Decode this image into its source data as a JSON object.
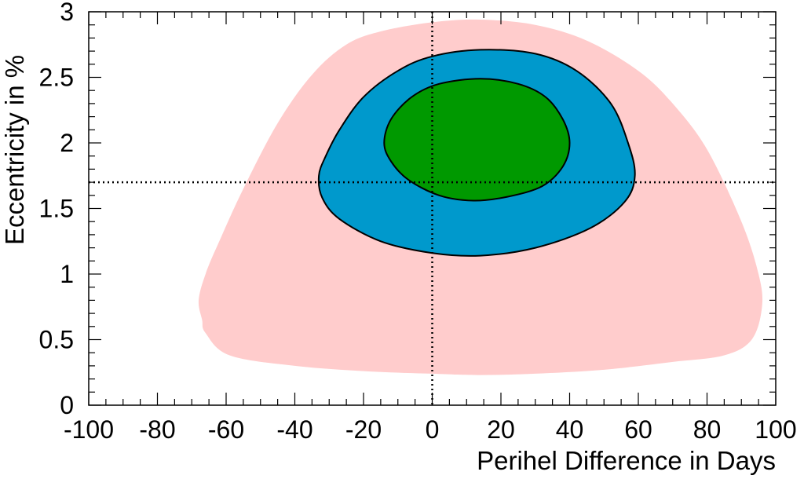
{
  "chart_data": {
    "type": "area",
    "title": "",
    "xlabel": "Perihel Difference in Days",
    "ylabel": "Eccentricity in %",
    "xlim": [
      -100,
      100
    ],
    "ylim": [
      0,
      3
    ],
    "x_ticks": [
      -100,
      -80,
      -60,
      -40,
      -20,
      0,
      20,
      40,
      60,
      80,
      100
    ],
    "y_ticks": [
      0,
      0.5,
      1,
      1.5,
      2,
      2.5,
      3
    ],
    "x_tick_labels": [
      "-100",
      "-80",
      "-60",
      "-40",
      "-20",
      "0",
      "20",
      "40",
      "60",
      "80",
      "100"
    ],
    "y_tick_labels": [
      "0",
      "0.5",
      "1",
      "1.5",
      "2",
      "2.5",
      "3"
    ],
    "grid": false,
    "reference_lines": [
      {
        "orientation": "vertical",
        "x": 0,
        "style": "dotted"
      },
      {
        "orientation": "horizontal",
        "y": 1.7,
        "style": "dotted"
      }
    ],
    "regions": [
      {
        "color": "#ffcccc",
        "outline": false,
        "points": [
          [
            -59,
            0.38
          ],
          [
            -40,
            0.3
          ],
          [
            -20,
            0.26
          ],
          [
            0,
            0.24
          ],
          [
            14,
            0.23
          ],
          [
            30,
            0.24
          ],
          [
            50,
            0.27
          ],
          [
            70,
            0.33
          ],
          [
            85,
            0.38
          ],
          [
            93,
            0.5
          ],
          [
            96,
            0.75
          ],
          [
            95,
            1.0
          ],
          [
            90,
            1.4
          ],
          [
            80,
            1.95
          ],
          [
            70,
            2.3
          ],
          [
            60,
            2.55
          ],
          [
            45,
            2.78
          ],
          [
            30,
            2.9
          ],
          [
            14,
            2.94
          ],
          [
            0,
            2.92
          ],
          [
            -15,
            2.85
          ],
          [
            -25,
            2.75
          ],
          [
            -35,
            2.52
          ],
          [
            -45,
            2.15
          ],
          [
            -55,
            1.65
          ],
          [
            -62,
            1.25
          ],
          [
            -66,
            1.0
          ],
          [
            -68,
            0.8
          ],
          [
            -67,
            0.65
          ],
          [
            -66,
            0.55
          ]
        ]
      },
      {
        "color": "#0099cc",
        "outline": true,
        "points": [
          [
            -33,
            1.75
          ],
          [
            -31,
            1.9
          ],
          [
            -27,
            2.1
          ],
          [
            -20,
            2.35
          ],
          [
            -10,
            2.55
          ],
          [
            0,
            2.66
          ],
          [
            14,
            2.71
          ],
          [
            30,
            2.68
          ],
          [
            42,
            2.55
          ],
          [
            52,
            2.3
          ],
          [
            57,
            2.0
          ],
          [
            59,
            1.75
          ],
          [
            56,
            1.55
          ],
          [
            46,
            1.35
          ],
          [
            30,
            1.2
          ],
          [
            14,
            1.14
          ],
          [
            0,
            1.16
          ],
          [
            -15,
            1.25
          ],
          [
            -27,
            1.42
          ],
          [
            -32,
            1.58
          ]
        ]
      },
      {
        "color": "#009900",
        "outline": true,
        "points": [
          [
            -14,
            2.0
          ],
          [
            -12,
            2.18
          ],
          [
            -6,
            2.35
          ],
          [
            2,
            2.45
          ],
          [
            14,
            2.49
          ],
          [
            25,
            2.45
          ],
          [
            33,
            2.35
          ],
          [
            38,
            2.18
          ],
          [
            40,
            2.0
          ],
          [
            38,
            1.82
          ],
          [
            32,
            1.67
          ],
          [
            22,
            1.59
          ],
          [
            12,
            1.56
          ],
          [
            2,
            1.6
          ],
          [
            -7,
            1.72
          ],
          [
            -12,
            1.86
          ]
        ]
      }
    ]
  }
}
